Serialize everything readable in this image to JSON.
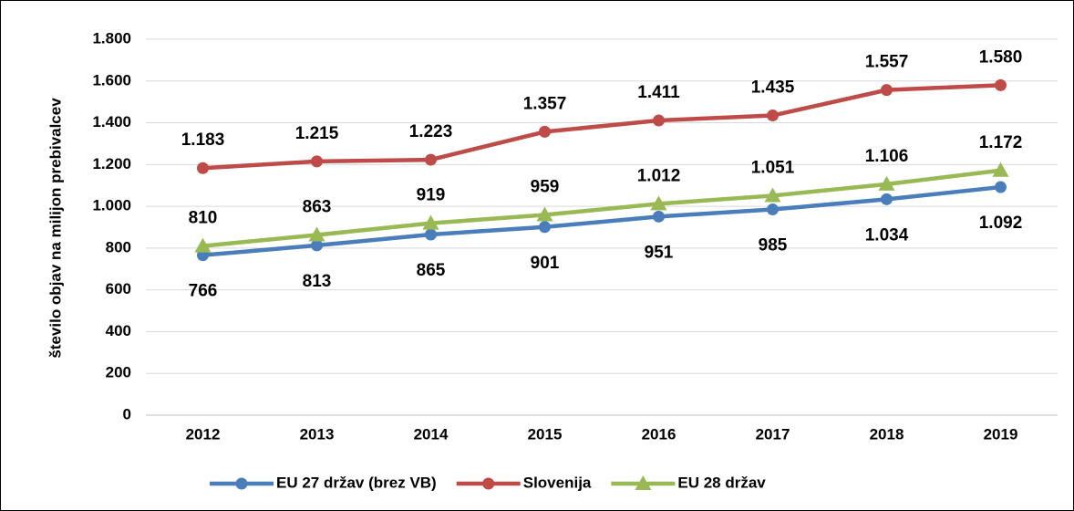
{
  "chart_data": {
    "type": "line",
    "y_label": "število objav na milijon prebivalcev",
    "categories": [
      "2012",
      "2013",
      "2014",
      "2015",
      "2016",
      "2017",
      "2018",
      "2019"
    ],
    "series": [
      {
        "name": "EU 27 držav (brez VB)",
        "color": "#4a7ebb",
        "marker": "circle",
        "values": [
          766,
          813,
          865,
          901,
          951,
          985,
          1034,
          1092
        ],
        "value_labels": [
          "766",
          "813",
          "865",
          "901",
          "951",
          "985",
          "1.034",
          "1.092"
        ]
      },
      {
        "name": "Slovenija",
        "color": "#be4b48",
        "marker": "circle",
        "values": [
          1183,
          1215,
          1223,
          1357,
          1411,
          1435,
          1557,
          1580
        ],
        "value_labels": [
          "1.183",
          "1.215",
          "1.223",
          "1.357",
          "1.411",
          "1.435",
          "1.557",
          "1.580"
        ]
      },
      {
        "name": "EU 28 držav",
        "color": "#98b954",
        "marker": "triangle",
        "values": [
          810,
          863,
          919,
          959,
          1012,
          1051,
          1106,
          1172
        ],
        "value_labels": [
          "810",
          "863",
          "919",
          "959",
          "1.012",
          "1.051",
          "1.106",
          "1.172"
        ]
      }
    ],
    "ylim": [
      0,
      1800
    ],
    "yticks": [
      0,
      200,
      400,
      600,
      800,
      {
        "value": 1000,
        "label": "1.000"
      },
      {
        "value": 1200,
        "label": "1.200"
      },
      {
        "value": 1400,
        "label": "1.400"
      },
      {
        "value": 1600,
        "label": "1.600"
      },
      {
        "value": 1800,
        "label": "1.800"
      }
    ],
    "grid": true,
    "legend": "bottom"
  }
}
